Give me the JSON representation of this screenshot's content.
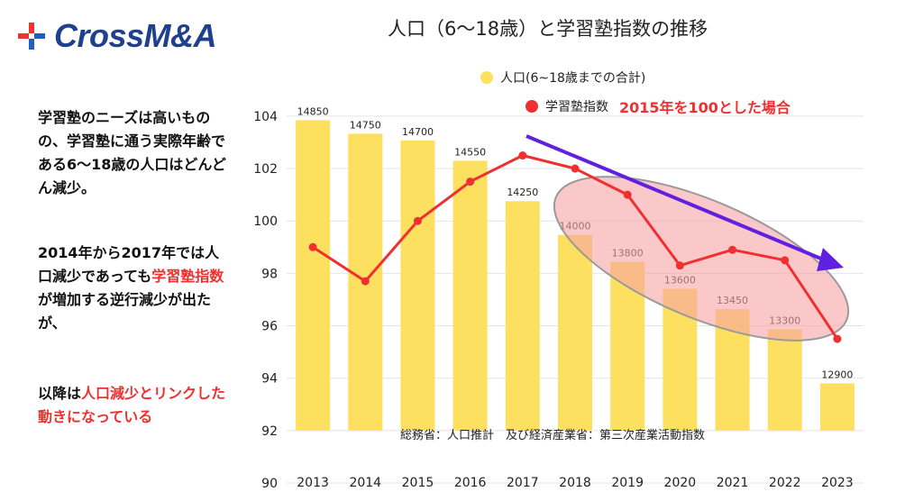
{
  "logo": {
    "brand": "CrossM&A"
  },
  "title": "人口（6〜18歳）と学習塾指数の推移",
  "legend": {
    "population": "人口(6~18歳までの合計)",
    "index": "学習塾指数",
    "index_note": "2015年を100とした場合"
  },
  "side": {
    "p1": " 学習塾のニーズは高いものの、学習塾に通う実際年齢である6〜18歳の人口はどんどん減少。",
    "p2a": " 2014年から2017年では人口減少であっても",
    "p2b": "学習塾指数",
    "p2c": "が増加する逆行減少が出たが、",
    "p3a": "以降は",
    "p3b": "人口減少とリンクした動きになっている"
  },
  "source": "総務省：人口推計　及び経済産業省：第三次産業活動指数",
  "colors": {
    "bar": "#fde060",
    "line": "#f03030",
    "ellipse": "#f7a3a3",
    "arrow": "#6020e0",
    "logo": "#1f3f8f"
  },
  "chart_data": {
    "type": "bar",
    "categories": [
      "2013",
      "2014",
      "2015",
      "2016",
      "2017",
      "2018",
      "2019",
      "2020",
      "2021",
      "2022",
      "2023"
    ],
    "series": [
      {
        "name": "人口(6~18歳までの合計)",
        "type": "bar",
        "values": [
          14850,
          14750,
          14700,
          14550,
          14250,
          14000,
          13800,
          13600,
          13450,
          13300,
          12900
        ],
        "labels": [
          "14850",
          "14750",
          "14700",
          "14550",
          "14250",
          "14000",
          "13800",
          "13600",
          "13450",
          "13300",
          "12900"
        ]
      },
      {
        "name": "学習塾指数",
        "type": "line",
        "values": [
          99,
          97.7,
          100,
          101.5,
          102.5,
          102,
          101,
          98.3,
          98.9,
          98.5,
          95.5
        ]
      }
    ],
    "yticks": [
      "90",
      "92",
      "94",
      "96",
      "98",
      "100",
      "102",
      "104"
    ],
    "ylim": [
      90,
      105.2
    ],
    "bar_scale": {
      "value_at_axis_92": 12550,
      "value_at_axis_104": 14880
    },
    "annotations": [
      "2018年以降の下降トレンドを示す楕円と矢印"
    ]
  }
}
